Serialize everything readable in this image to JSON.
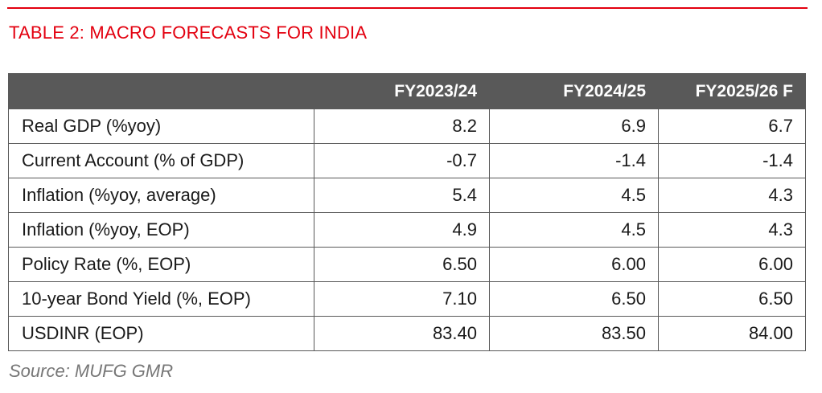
{
  "title": "TABLE 2: MACRO FORECASTS FOR INDIA",
  "colors": {
    "accent_red": "#e3000f",
    "header_bg": "#595959",
    "source_text": "#777777"
  },
  "table": {
    "columns": [
      "",
      "FY2023/24",
      "FY2024/25",
      "FY2025/26 F"
    ],
    "rows": [
      {
        "label": "Real GDP (%yoy)",
        "values": [
          "8.2",
          "6.9",
          "6.7"
        ]
      },
      {
        "label": "Current Account (% of GDP)",
        "values": [
          "-0.7",
          "-1.4",
          "-1.4"
        ]
      },
      {
        "label": "Inflation (%yoy, average)",
        "values": [
          "5.4",
          "4.5",
          "4.3"
        ]
      },
      {
        "label": "Inflation (%yoy, EOP)",
        "values": [
          "4.9",
          "4.5",
          "4.3"
        ]
      },
      {
        "label": "Policy Rate (%, EOP)",
        "values": [
          "6.50",
          "6.00",
          "6.00"
        ]
      },
      {
        "label": "10-year Bond Yield (%, EOP)",
        "values": [
          "7.10",
          "6.50",
          "6.50"
        ]
      },
      {
        "label": "USDINR (EOP)",
        "values": [
          "83.40",
          "83.50",
          "84.00"
        ]
      }
    ]
  },
  "source": "Source: MUFG GMR"
}
